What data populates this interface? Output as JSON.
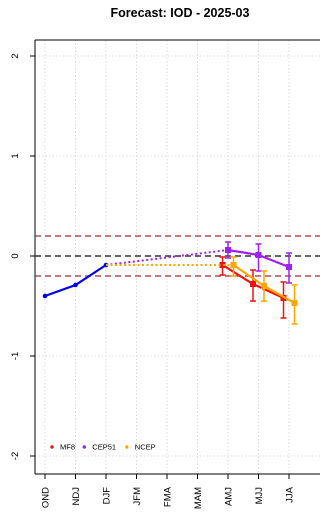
{
  "chart_data": {
    "type": "line",
    "title": "Forecast: IOD - 2025-03",
    "xlabel": "",
    "ylabel": "",
    "categories": [
      "OND",
      "NDJ",
      "DJF",
      "JFM",
      "FMA",
      "MAM",
      "AMJ",
      "MJJ",
      "JJA"
    ],
    "y_ticks": [
      2,
      1,
      0,
      -1,
      -2
    ],
    "ylim": [
      -2.1,
      2.15
    ],
    "grid": true,
    "legend_position": "bottom-left",
    "thresholds": {
      "zero": 0,
      "upper": 0.2,
      "lower": -0.2
    },
    "observed": {
      "color": "#0000ee",
      "x": [
        "OND",
        "NDJ",
        "DJF"
      ],
      "values": [
        -0.4,
        -0.29,
        -0.09
      ]
    },
    "series": [
      {
        "name": "MF8",
        "color": "#ee1111",
        "x": [
          "AMJ",
          "MJJ",
          "JJA"
        ],
        "values": [
          -0.09,
          -0.28,
          -0.42
        ],
        "lower": [
          -0.19,
          -0.45,
          -0.62
        ],
        "upper": [
          -0.01,
          -0.14,
          -0.26
        ],
        "offset": -0.18
      },
      {
        "name": "CEP51",
        "color": "#a020f0",
        "x": [
          "AMJ",
          "MJJ",
          "JJA"
        ],
        "values": [
          0.06,
          0.01,
          -0.11
        ],
        "lower": [
          -0.02,
          -0.15,
          -0.27
        ],
        "upper": [
          0.14,
          0.12,
          0.03
        ],
        "offset": 0
      },
      {
        "name": "NCEP",
        "color": "#ffa500",
        "x": [
          "AMJ",
          "MJJ",
          "JJA"
        ],
        "values": [
          -0.09,
          -0.3,
          -0.47
        ],
        "lower": [
          -0.2,
          -0.45,
          -0.68
        ],
        "upper": [
          -0.01,
          -0.15,
          -0.29
        ],
        "offset": 0.18
      }
    ]
  }
}
